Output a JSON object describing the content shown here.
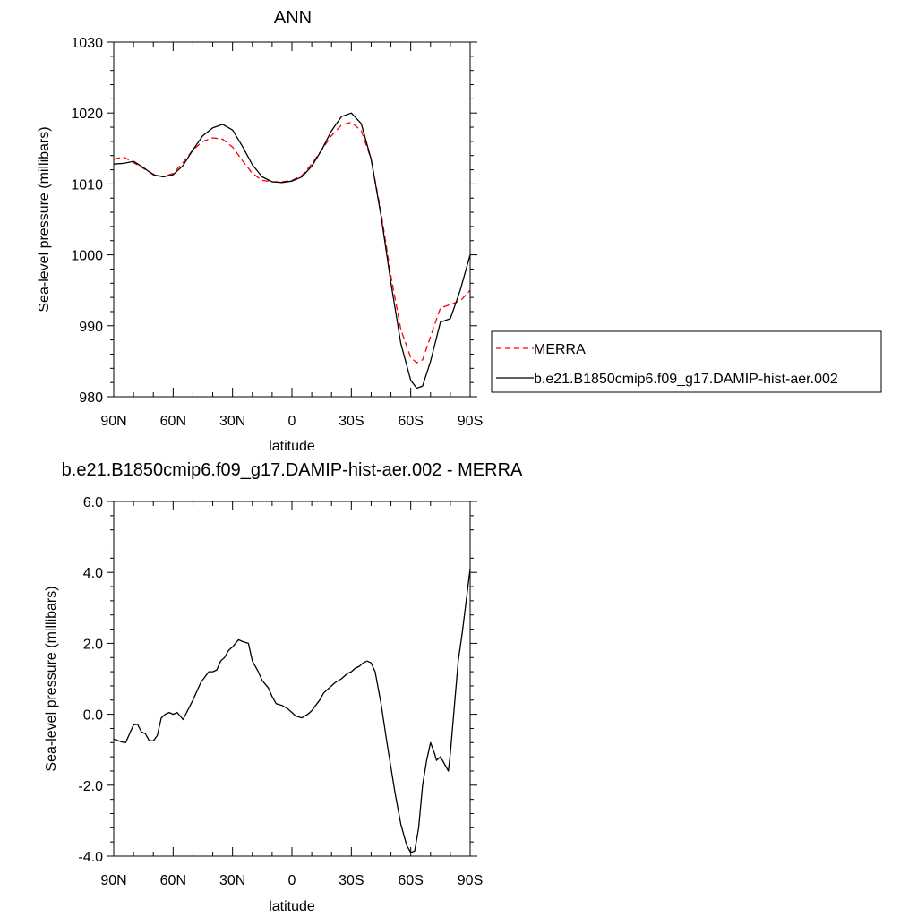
{
  "chart_data": [
    {
      "type": "line",
      "title": "ANN",
      "xlabel": "latitude",
      "ylabel": "Sea-level pressure (millibars)",
      "xlim": [
        90,
        -90
      ],
      "ylim": [
        980,
        1030
      ],
      "xticks": [
        90,
        60,
        30,
        0,
        -30,
        -60,
        -90
      ],
      "xtick_labels": [
        "90N",
        "60N",
        "30N",
        "0",
        "30S",
        "60S",
        "90S"
      ],
      "yticks": [
        980,
        990,
        1000,
        1010,
        1020,
        1030
      ],
      "ytick_labels": [
        "980",
        "990",
        "1000",
        "1010",
        "1020",
        "1030"
      ],
      "legend": "right",
      "series": [
        {
          "name": "MERRA",
          "color": "#ff0000",
          "dash": "dashed",
          "x": [
            90,
            85,
            80,
            75,
            70,
            65,
            60,
            55,
            50,
            45,
            40,
            35,
            30,
            25,
            20,
            15,
            10,
            5,
            0,
            -5,
            -10,
            -15,
            -20,
            -25,
            -30,
            -35,
            -40,
            -45,
            -50,
            -55,
            -60,
            -63,
            -66,
            -70,
            -75,
            -80,
            -85,
            -90
          ],
          "y": [
            1013.5,
            1013.8,
            1013,
            1012.2,
            1011.4,
            1011,
            1011.5,
            1013,
            1014.8,
            1016,
            1016.5,
            1016.3,
            1015.2,
            1013.3,
            1011.5,
            1010.5,
            1010.3,
            1010.3,
            1010.5,
            1011.2,
            1012.8,
            1014.8,
            1016.8,
            1018.3,
            1018.7,
            1017.5,
            1013.5,
            1006,
            997,
            989.5,
            985.5,
            984.8,
            985.2,
            988.5,
            992.5,
            993,
            993.5,
            995
          ]
        },
        {
          "name": "b.e21.B1850cmip6.f09_g17.DAMIP-hist-aer.002",
          "color": "#000000",
          "dash": "solid",
          "x": [
            90,
            85,
            80,
            75,
            70,
            65,
            60,
            55,
            50,
            45,
            40,
            35,
            30,
            25,
            20,
            15,
            10,
            5,
            0,
            -5,
            -10,
            -15,
            -20,
            -25,
            -30,
            -35,
            -40,
            -45,
            -50,
            -55,
            -60,
            -63,
            -66,
            -70,
            -75,
            -80,
            -85,
            -90
          ],
          "y": [
            1012.8,
            1012.9,
            1013.2,
            1012.3,
            1011.3,
            1011,
            1011.3,
            1012.6,
            1014.8,
            1016.8,
            1017.9,
            1018.4,
            1017.6,
            1015.3,
            1012.7,
            1011,
            1010.3,
            1010.2,
            1010.4,
            1011,
            1012.5,
            1014.8,
            1017.5,
            1019.5,
            1020,
            1018.5,
            1013.5,
            1005.5,
            996,
            987.5,
            982.3,
            981.2,
            981.5,
            985,
            990.5,
            991,
            995,
            1000
          ]
        }
      ]
    },
    {
      "type": "line",
      "title": "b.e21.B1850cmip6.f09_g17.DAMIP-hist-aer.002 - MERRA",
      "xlabel": "latitude",
      "ylabel": "Sea-level pressure (millibars)",
      "xlim": [
        90,
        -90
      ],
      "ylim": [
        -4,
        6
      ],
      "xticks": [
        90,
        60,
        30,
        0,
        -30,
        -60,
        -90
      ],
      "xtick_labels": [
        "90N",
        "60N",
        "30N",
        "0",
        "30S",
        "60S",
        "90S"
      ],
      "yticks": [
        -4,
        -2,
        0,
        2,
        4,
        6
      ],
      "ytick_labels": [
        "-4.0",
        "-2.0",
        "0.0",
        "2.0",
        "4.0",
        "6.0"
      ],
      "series": [
        {
          "color": "#000000",
          "dash": "solid",
          "x": [
            90,
            86,
            84,
            82,
            80,
            78,
            76,
            74,
            72,
            70,
            68,
            66,
            64,
            62,
            60,
            58,
            55,
            50,
            46,
            42,
            40,
            38,
            36,
            34,
            32,
            30,
            27,
            25,
            22,
            20,
            17,
            15,
            12,
            10,
            8,
            5,
            2,
            0,
            -2,
            -5,
            -8,
            -10,
            -12,
            -14,
            -16,
            -18,
            -20,
            -22,
            -25,
            -28,
            -30,
            -32,
            -34,
            -36,
            -38,
            -40,
            -42,
            -45,
            -48,
            -52,
            -55,
            -58,
            -60,
            -62,
            -64,
            -66,
            -68,
            -70,
            -72,
            -73,
            -75,
            -77,
            -79,
            -80,
            -82,
            -84,
            -86,
            -88,
            -90
          ],
          "y": [
            -0.7,
            -0.78,
            -0.8,
            -0.55,
            -0.3,
            -0.28,
            -0.5,
            -0.55,
            -0.75,
            -0.75,
            -0.6,
            -0.1,
            0.0,
            0.05,
            0.0,
            0.05,
            -0.15,
            0.4,
            0.9,
            1.2,
            1.2,
            1.25,
            1.5,
            1.6,
            1.8,
            1.9,
            2.1,
            2.05,
            2.0,
            1.5,
            1.2,
            0.95,
            0.75,
            0.5,
            0.3,
            0.25,
            0.15,
            0.05,
            -0.05,
            -0.1,
            0.0,
            0.1,
            0.25,
            0.4,
            0.6,
            0.7,
            0.8,
            0.9,
            1.0,
            1.15,
            1.2,
            1.3,
            1.35,
            1.45,
            1.5,
            1.45,
            1.2,
            0.3,
            -0.8,
            -2.2,
            -3.1,
            -3.7,
            -3.9,
            -3.85,
            -3.2,
            -2.0,
            -1.3,
            -0.8,
            -1.1,
            -1.3,
            -1.2,
            -1.4,
            -1.6,
            -1.1,
            0.2,
            1.5,
            2.3,
            3.2,
            4.1
          ]
        }
      ]
    }
  ]
}
